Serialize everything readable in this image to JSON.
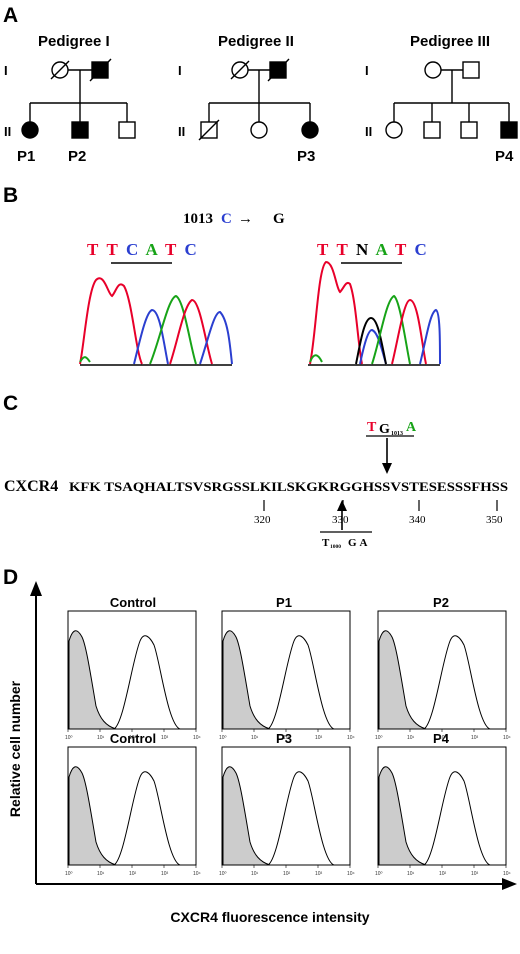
{
  "panels": {
    "a": "A",
    "b": "B",
    "c": "C",
    "d": "D"
  },
  "pedigrees": [
    {
      "title": "Pedigree I",
      "gen1": "I",
      "gen2": "II",
      "patients": [
        "P1",
        "P2"
      ]
    },
    {
      "title": "Pedigree II",
      "gen1": "I",
      "gen2": "II",
      "patients": [
        "P3"
      ]
    },
    {
      "title": "Pedigree III",
      "gen1": "I",
      "gen2": "II",
      "patients": [
        "P4"
      ]
    }
  ],
  "mutation": {
    "position": "1013",
    "from": "C",
    "arrow": "→",
    "to": "G"
  },
  "chromatograms": {
    "wild_type": [
      "T",
      "T",
      "C",
      "A",
      "T",
      "C"
    ],
    "mutant": [
      "T",
      "T",
      "N",
      "A",
      "T",
      "C"
    ]
  },
  "colors": {
    "T": "#e8002a",
    "C": "#2b3fd0",
    "A": "#17a317",
    "G": "#000000",
    "N": "#000000",
    "histogram_fill": "#cccccc"
  },
  "sequence": {
    "protein": "CXCR4",
    "residues": "KFK TSAQHALTSVSRGSSLKILSKGKRGGHSSVSTESESSSFHSS",
    "ticks": [
      "320",
      "330",
      "340",
      "350"
    ],
    "upper_codon": {
      "t": "T",
      "g": "G",
      "sub": "1013",
      "a": "A"
    },
    "lower_codon": {
      "t": "T",
      "sub": "1000",
      "rest": "GA"
    }
  },
  "flow": {
    "row1": [
      "Control",
      "P1",
      "P2"
    ],
    "row2": [
      "Control",
      "P3",
      "P4"
    ],
    "x_tick_labels": [
      "10⁰",
      "10¹",
      "10²",
      "10³",
      "10⁴"
    ],
    "y_axis_label": "Relative cell number",
    "x_axis_label": "CXCR4 fluorescence intensity"
  }
}
